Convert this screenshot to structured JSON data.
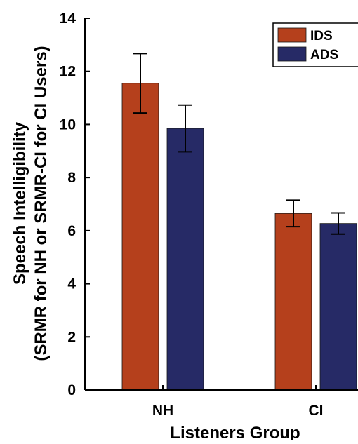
{
  "chart_data": {
    "type": "bar",
    "categories": [
      "NH",
      "CI"
    ],
    "series": [
      {
        "name": "IDS",
        "values": [
          11.55,
          6.65
        ],
        "errors": [
          1.12,
          0.5
        ],
        "color": "#b5401c"
      },
      {
        "name": "ADS",
        "values": [
          9.85,
          6.27
        ],
        "errors": [
          0.88,
          0.4
        ],
        "color": "#262a66"
      }
    ],
    "xlabel": "Listeners Group",
    "ylabel_lines": [
      "Speech Intelligibility",
      "(SRMR for NH or SRMR-CI for CI Users)"
    ],
    "ylim": [
      0,
      14
    ],
    "yticks": [
      0,
      2,
      4,
      6,
      8,
      10,
      12,
      14
    ],
    "legend_position": "top-right",
    "grid": false
  }
}
